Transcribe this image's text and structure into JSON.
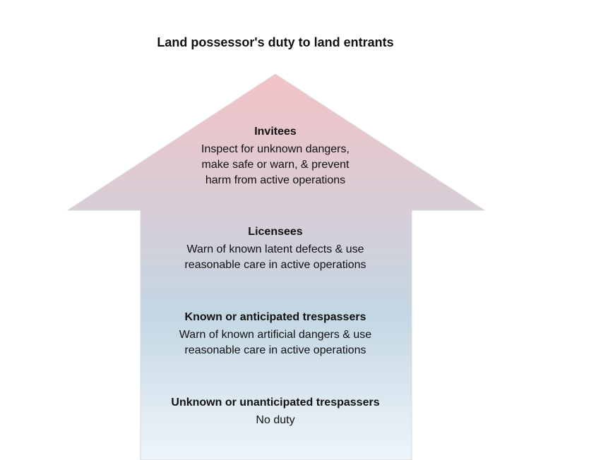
{
  "title": "Land possessor's duty to land entrants",
  "colors": {
    "arrow_top": "#f2c2c6",
    "arrow_middle": "#c3d6e3",
    "arrow_bottom": "#eef5fa",
    "arrow_edge": "#d8d8d8"
  },
  "tiers": [
    {
      "heading": "Invitees",
      "description": "Inspect for unknown dangers,\nmake safe or warn, & prevent\nharm from active operations"
    },
    {
      "heading": "Licensees",
      "description": "Warn of known latent defects & use\nreasonable care in active operations"
    },
    {
      "heading": "Known or anticipated trespassers",
      "description": "Warn of known artificial dangers & use\nreasonable care in active operations"
    },
    {
      "heading": "Unknown or unanticipated trespassers",
      "description": "No duty"
    }
  ]
}
